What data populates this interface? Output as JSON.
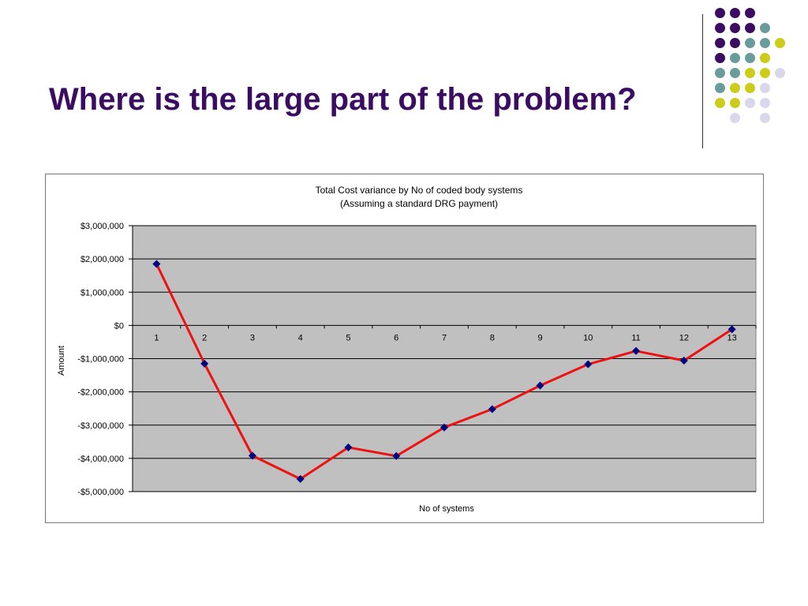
{
  "slide": {
    "title": "Where is the large part of the problem?"
  },
  "decoration": {
    "dot_colors": {
      "purple": "#3a0d62",
      "teal": "#6a9c9c",
      "yellow": "#cccc1a",
      "lavender": "#d8d8ea"
    },
    "dot_grid": [
      [
        "purple",
        "purple",
        "purple",
        "",
        ""
      ],
      [
        "purple",
        "purple",
        "purple",
        "teal",
        ""
      ],
      [
        "purple",
        "purple",
        "teal",
        "teal",
        "yellow"
      ],
      [
        "purple",
        "teal",
        "teal",
        "yellow",
        ""
      ],
      [
        "teal",
        "teal",
        "yellow",
        "yellow",
        "lavender"
      ],
      [
        "teal",
        "yellow",
        "yellow",
        "lavender",
        ""
      ],
      [
        "yellow",
        "yellow",
        "lavender",
        "lavender",
        ""
      ],
      [
        "",
        "lavender",
        "",
        "lavender",
        ""
      ]
    ]
  },
  "chart_data": {
    "type": "line",
    "title_lines": [
      "Total Cost variance by No of coded body systems",
      "(Assuming  a standard  DRG  payment)"
    ],
    "xlabel": "No of systems",
    "ylabel": "Amount",
    "categories": [
      "1",
      "2",
      "3",
      "4",
      "5",
      "6",
      "7",
      "8",
      "9",
      "10",
      "11",
      "12",
      "13"
    ],
    "series": [
      {
        "values": [
          1850000,
          -1150000,
          -3920000,
          -4620000,
          -3670000,
          -3930000,
          -3070000,
          -2520000,
          -1810000,
          -1170000,
          -770000,
          -1060000,
          -120000
        ],
        "line_color": "#ee1111",
        "marker_color": "#000080"
      }
    ],
    "ylim": [
      -5000000,
      3000000
    ],
    "y_ticks": [
      3000000,
      2000000,
      1000000,
      0,
      -1000000,
      -2000000,
      -3000000,
      -4000000,
      -5000000
    ],
    "y_tick_labels": [
      "$3,000,000",
      "$2,000,000",
      "$1,000,000",
      "$0",
      "-$1,000,000",
      "-$2,000,000",
      "-$3,000,000",
      "-$4,000,000",
      "-$5,000,000"
    ],
    "grid": true,
    "plot_background": "#c0c0c0",
    "legend": "none"
  }
}
